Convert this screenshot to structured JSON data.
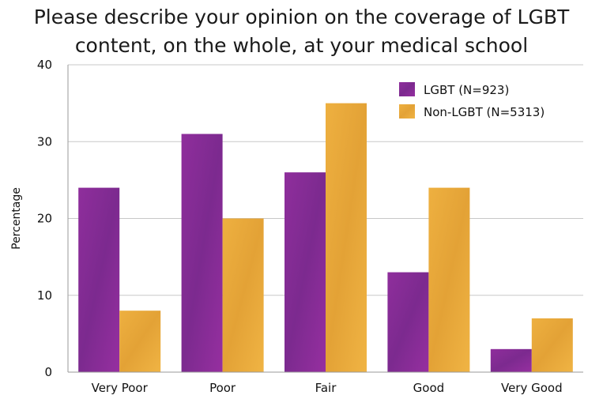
{
  "chart_data": {
    "type": "bar",
    "title_lines": [
      "Please describe your opinion on the coverage of LGBT",
      "content, on the whole, at your medical school"
    ],
    "xlabel": "",
    "ylabel": "Percentage",
    "ylim": [
      0,
      40
    ],
    "yticks": [
      "0",
      "10",
      "20",
      "30",
      "40"
    ],
    "categories": [
      "Very Poor",
      "Poor",
      "Fair",
      "Good",
      "Very Good"
    ],
    "series": [
      {
        "name": "LGBT (N=923)",
        "color": "#8b2a98",
        "values": [
          24,
          31,
          26,
          13,
          3
        ]
      },
      {
        "name": "Non-LGBT (N=5313)",
        "color": "#e8a83a",
        "values": [
          8,
          20,
          35,
          24,
          7
        ]
      }
    ],
    "grid": true,
    "legend_position": "top-right"
  }
}
